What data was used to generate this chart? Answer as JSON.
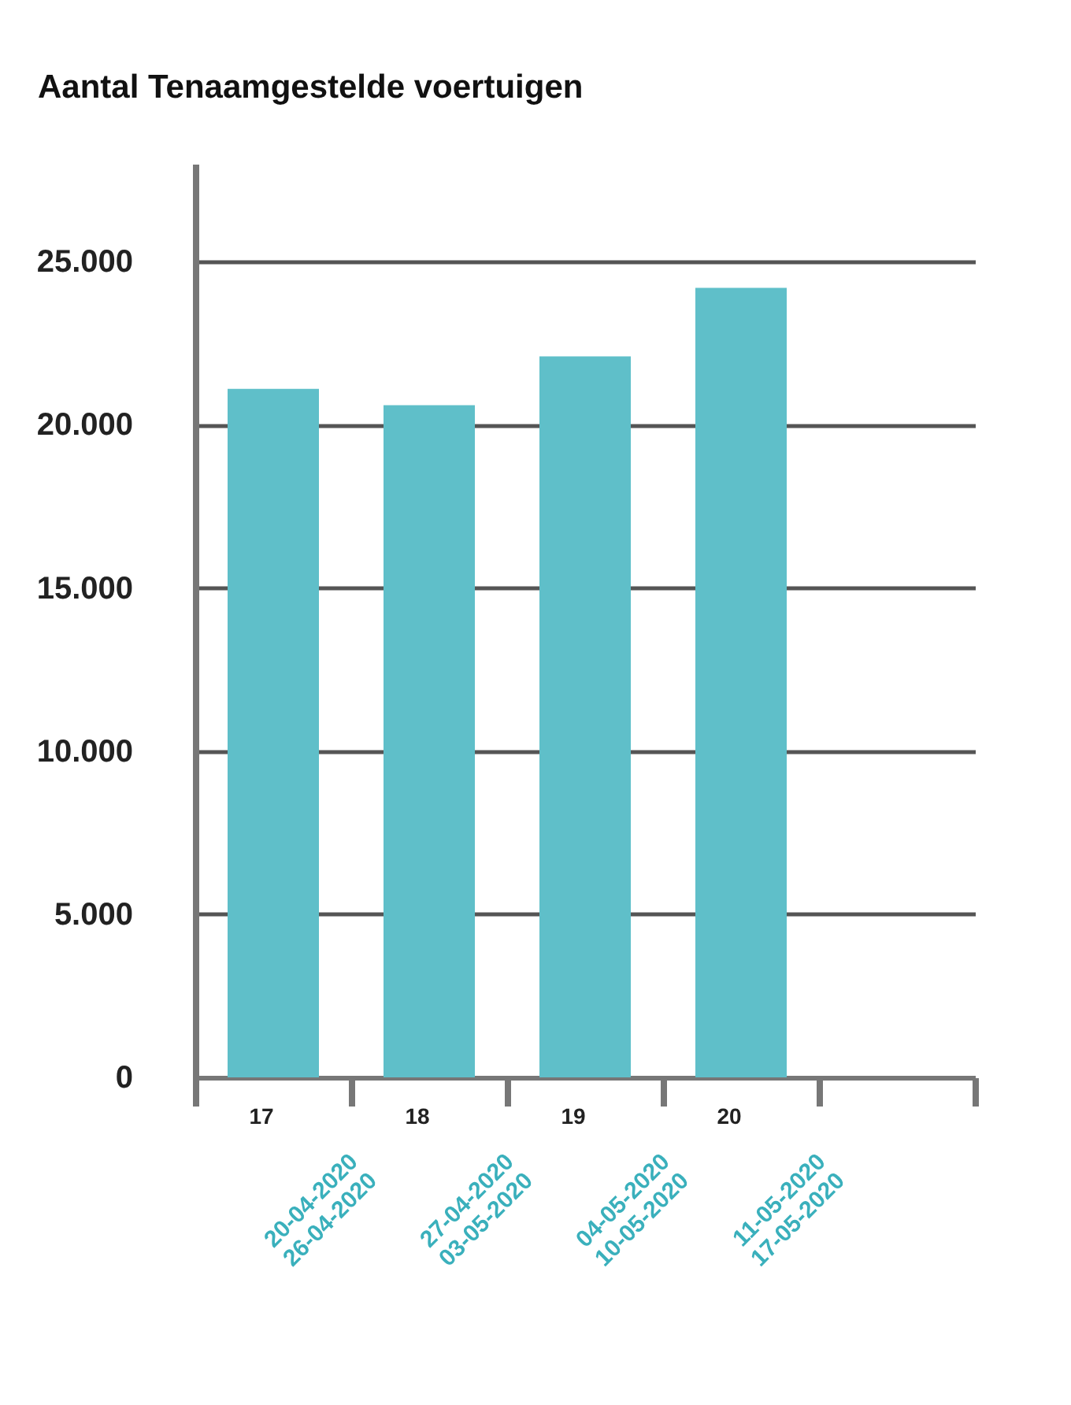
{
  "chart_data": {
    "type": "bar",
    "title": "Aantal Tenaamgestelde voertuigen",
    "categories": [
      "17",
      "18",
      "19",
      "20",
      null
    ],
    "values": [
      21100,
      20600,
      22100,
      24200,
      null
    ],
    "color": "#5fbfc9",
    "ylim": [
      0,
      28000
    ],
    "yticks": [
      {
        "value": 0,
        "label": "0"
      },
      {
        "value": 5000,
        "label": "5.000"
      },
      {
        "value": 10000,
        "label": "10.000"
      },
      {
        "value": 15000,
        "label": "15.000"
      },
      {
        "value": 20000,
        "label": "20.000"
      },
      {
        "value": 25000,
        "label": "25.000"
      }
    ],
    "grid": "y",
    "annotations": [
      "20-04-2020\n26-04-2020",
      "27-04-2020\n03-05-2020",
      "04-05-2020\n10-05-2020",
      "11-05-2020\n17-05-2020"
    ]
  }
}
